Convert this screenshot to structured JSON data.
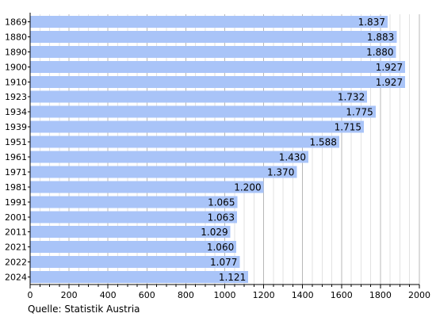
{
  "chart_data": {
    "type": "bar",
    "orientation": "horizontal",
    "categories": [
      "1869",
      "1880",
      "1890",
      "1900",
      "1910",
      "1923",
      "1934",
      "1939",
      "1951",
      "1961",
      "1971",
      "1981",
      "1991",
      "2001",
      "2011",
      "2021",
      "2022",
      "2024"
    ],
    "values": [
      1837,
      1883,
      1880,
      1927,
      1927,
      1732,
      1775,
      1715,
      1588,
      1430,
      1370,
      1200,
      1065,
      1063,
      1029,
      1060,
      1077,
      1121
    ],
    "value_labels": [
      "1.837",
      "1.883",
      "1.880",
      "1.927",
      "1.927",
      "1.732",
      "1.775",
      "1.715",
      "1.588",
      "1.430",
      "1.370",
      "1.200",
      "1.065",
      "1.063",
      "1.029",
      "1.060",
      "1.077",
      "1.121"
    ],
    "x_ticks": [
      0,
      200,
      400,
      600,
      800,
      1000,
      1200,
      1400,
      1600,
      1800,
      2000
    ],
    "xlim": [
      0,
      2000
    ],
    "grid": "vertical",
    "colors": {
      "bar": "#a9c4f8",
      "grid": "#c8c8c8",
      "axis": "#000000",
      "text": "#000000"
    },
    "source": "Quelle: Statistik Austria"
  }
}
